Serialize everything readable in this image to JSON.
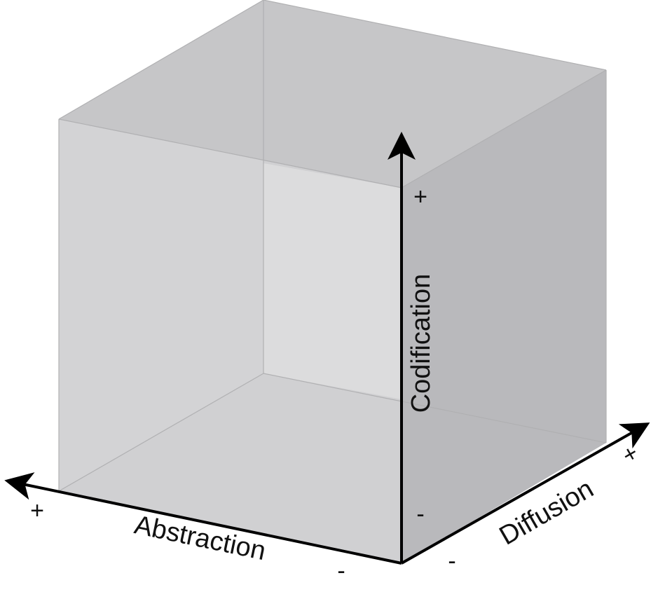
{
  "diagram": {
    "axes": {
      "codification": {
        "label": "Codification",
        "plus": "+",
        "minus": "-"
      },
      "abstraction": {
        "label": "Abstraction",
        "plus": "+",
        "minus": "-"
      },
      "diffusion": {
        "label": "Diffusion",
        "plus": "+",
        "minus": "-"
      }
    },
    "colors": {
      "background": "#ffffff",
      "top_face": "#c6c6c8",
      "left_face": "#cfcfd1",
      "right_face": "#b8b8bb",
      "back_face": "#dadadb",
      "floor_face": "#d2d2d4",
      "edge": "#aeaeb0",
      "axis": "#000000"
    }
  }
}
